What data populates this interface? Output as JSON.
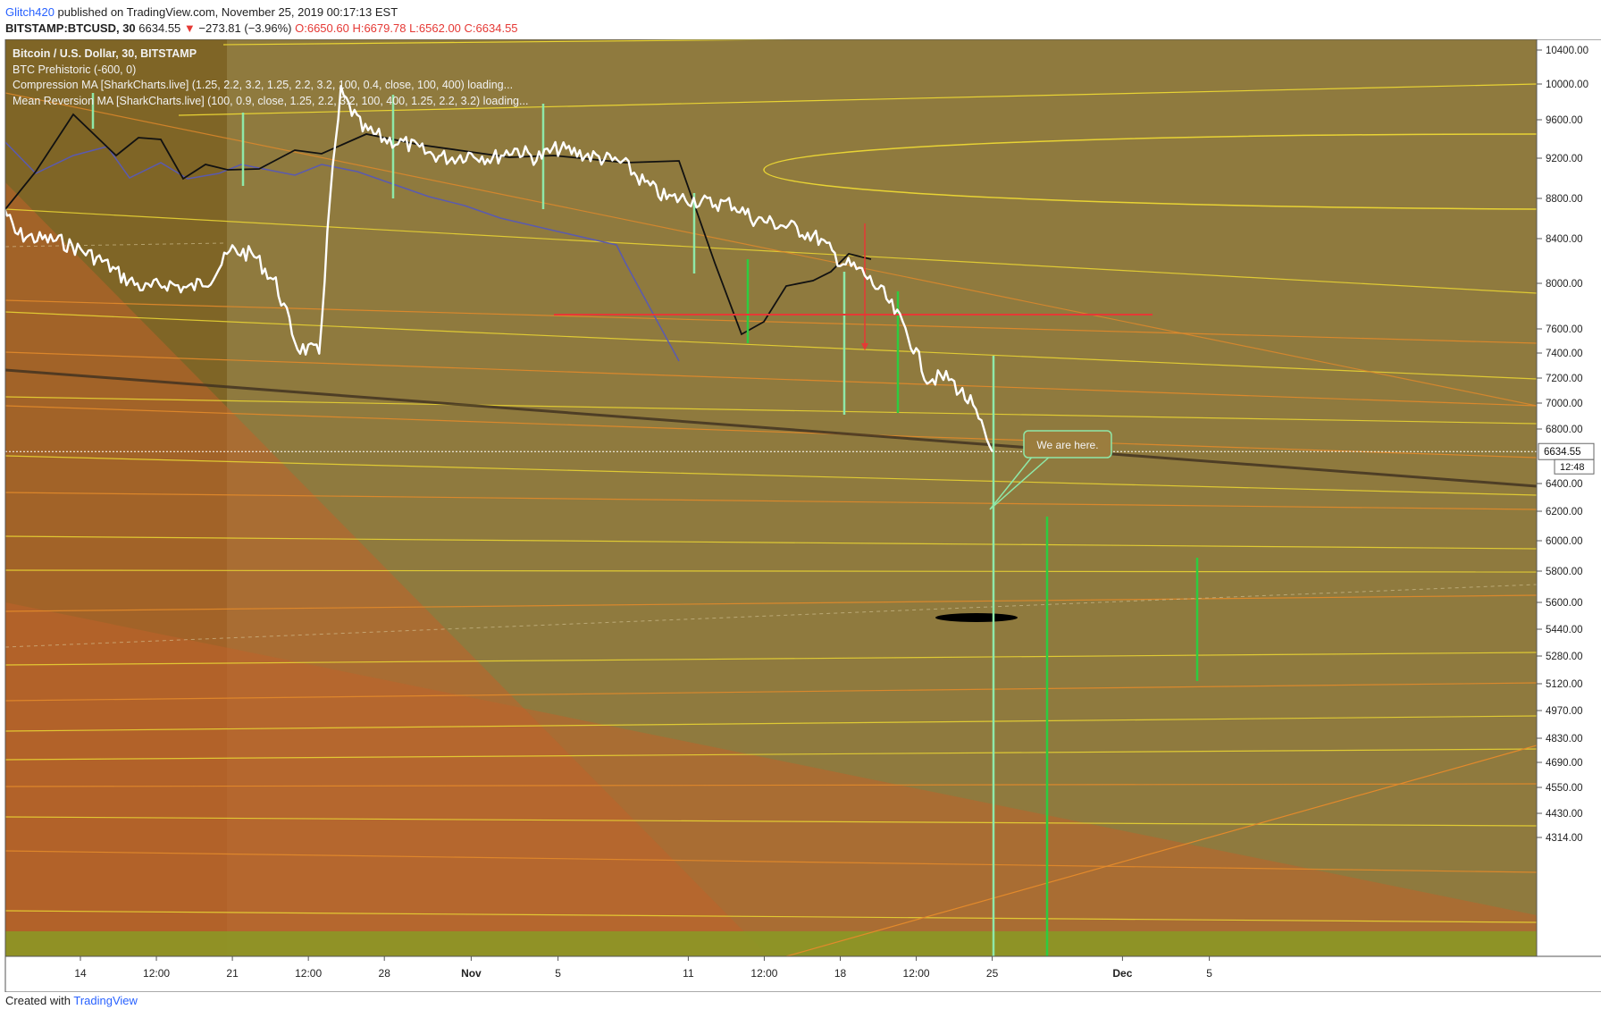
{
  "header": {
    "author": "Glitch420",
    "published": "published on TradingView.com, November 25, 2019 00:17:13 EST",
    "symbol": "BITSTAMP:BTCUSD, 30",
    "last": "6634.55",
    "change_arrow": "▼",
    "change": "−273.81 (−3.96%)",
    "open": "O:6650.60",
    "high": "H:6679.78",
    "low": "L:6562.00",
    "close": "C:6634.55"
  },
  "legend": {
    "title": "Bitcoin / U.S. Dollar, 30, BITSTAMP",
    "line2": "BTC Prehistoric (-600, 0)",
    "line3": "Compression MA [SharkCharts.live] (1.25, 2.2, 3.2, 1.25, 2.2, 3.2, 100, 0.4, close, 100, 400) loading...",
    "line4": "Mean Reversion MA [SharkCharts.live] (100, 0.9, close, 1.25, 2.2, 3.2, 100, 400, 1.25, 2.2, 3.2) loading..."
  },
  "annotation": {
    "text": "We are here."
  },
  "price_label": {
    "value": "6634.55",
    "countdown": "12:48"
  },
  "footer": {
    "created_with": "Created with",
    "brand": "TradingView"
  },
  "colors": {
    "background": "#8f7a3e",
    "price_line": "#ffffff",
    "fib_line_yellow": "#e8d334",
    "fib_line_orange": "#e38a2b",
    "fan_fill": "#c0622a",
    "cycle_green": "#2ecc40",
    "cycle_mint": "#8fe8a8",
    "resistance_red": "#e53935",
    "ma_black": "#111111",
    "ma_purple": "#5a5ab0"
  },
  "chart_data": {
    "type": "line",
    "y_axis_ticks": [
      "10400.00",
      "10000.00",
      "9600.00",
      "9200.00",
      "8800.00",
      "8400.00",
      "8000.00",
      "7600.00",
      "7400.00",
      "7200.00",
      "7000.00",
      "6800.00",
      "6400.00",
      "6200.00",
      "6000.00",
      "5800.00",
      "5600.00",
      "5440.00",
      "5280.00",
      "5120.00",
      "4970.00",
      "4830.00",
      "4690.00",
      "4550.00",
      "4430.00",
      "4314.00"
    ],
    "y_axis_values": [
      10400,
      10000,
      9600,
      9200,
      8800,
      8400,
      8000,
      7600,
      7400,
      7200,
      7000,
      6800,
      6400,
      6200,
      6000,
      5800,
      5600,
      5440,
      5280,
      5120,
      4970,
      4830,
      4690,
      4550,
      4430,
      4314
    ],
    "x_axis_ticks": [
      "14",
      "12:00",
      "21",
      "12:00",
      "28",
      "Nov",
      "5",
      "11",
      "12:00",
      "18",
      "12:00",
      "25",
      "Dec",
      "5"
    ],
    "x_axis_days": [
      14,
      17.5,
      21,
      24.5,
      28,
      32,
      36,
      42,
      45.5,
      49,
      52.5,
      56,
      62,
      66
    ],
    "price_series": {
      "name": "BTCUSD",
      "x_day": [
        10.5,
        11,
        12,
        13,
        14,
        15,
        16,
        17,
        18,
        19,
        20,
        21,
        22,
        23,
        24,
        25,
        25.5,
        26,
        27,
        28,
        29,
        30,
        31,
        32,
        33,
        34,
        35,
        36,
        37,
        38,
        39,
        40,
        41,
        42,
        43,
        44,
        45,
        46,
        47,
        48,
        49,
        50,
        51,
        52,
        53,
        54,
        55,
        56
      ],
      "y": [
        8700,
        8450,
        8400,
        8380,
        8300,
        8200,
        8050,
        7950,
        8000,
        7950,
        8050,
        8300,
        8250,
        8000,
        7450,
        7400,
        8800,
        9900,
        9500,
        9400,
        9350,
        9250,
        9200,
        9250,
        9200,
        9300,
        9200,
        9300,
        9250,
        9200,
        9150,
        8950,
        8800,
        8800,
        8750,
        8750,
        8600,
        8550,
        8500,
        8400,
        8200,
        8100,
        7900,
        7600,
        7200,
        7200,
        7000,
        6634.55
      ]
    },
    "resistance_level": 7850,
    "target_level": 6000,
    "annotation_text": "We are here."
  }
}
